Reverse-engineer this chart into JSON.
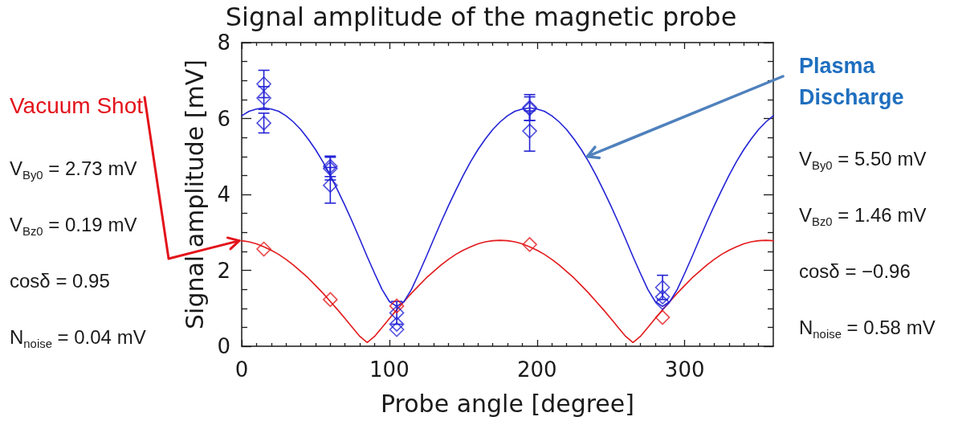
{
  "chart_data": {
    "type": "scatter",
    "title": "Signal amplitude of the magnetic probe",
    "xlabel": "Probe angle [degree]",
    "ylabel": "Signal amplitude [mV]",
    "xlim": [
      0,
      360
    ],
    "ylim": [
      0,
      8
    ],
    "xticks": [
      0,
      {
        "value": 10,
        "label": null
      },
      {
        "value": 20,
        "label": null
      },
      {
        "value": 30,
        "label": null
      },
      {
        "value": 40,
        "label": null
      },
      {
        "value": 50,
        "label": null
      },
      {
        "value": 60,
        "label": null
      },
      {
        "value": 70,
        "label": null
      },
      {
        "value": 80,
        "label": null
      },
      {
        "value": 90,
        "label": null
      },
      100,
      {
        "value": 110,
        "label": null
      },
      {
        "value": 120,
        "label": null
      },
      {
        "value": 130,
        "label": null
      },
      {
        "value": 140,
        "label": null
      },
      {
        "value": 150,
        "label": null
      },
      {
        "value": 160,
        "label": null
      },
      {
        "value": 170,
        "label": null
      },
      {
        "value": 180,
        "label": null
      },
      {
        "value": 190,
        "label": null
      },
      200,
      {
        "value": 210,
        "label": null
      },
      {
        "value": 220,
        "label": null
      },
      {
        "value": 230,
        "label": null
      },
      {
        "value": 240,
        "label": null
      },
      {
        "value": 250,
        "label": null
      },
      {
        "value": 260,
        "label": null
      },
      {
        "value": 270,
        "label": null
      },
      {
        "value": 280,
        "label": null
      },
      {
        "value": 290,
        "label": null
      },
      300,
      {
        "value": 310,
        "label": null
      },
      {
        "value": 320,
        "label": null
      },
      {
        "value": 330,
        "label": null
      },
      {
        "value": 340,
        "label": null
      },
      {
        "value": 350,
        "label": null
      }
    ],
    "yticks": [
      0,
      {
        "value": 0.5,
        "label": null
      },
      {
        "value": 1,
        "label": null
      },
      {
        "value": 1.5,
        "label": null
      },
      2,
      {
        "value": 2.5,
        "label": null
      },
      {
        "value": 3,
        "label": null
      },
      {
        "value": 3.5,
        "label": null
      },
      4,
      {
        "value": 4.5,
        "label": null
      },
      {
        "value": 5,
        "label": null
      },
      {
        "value": 5.5,
        "label": null
      },
      6,
      {
        "value": 6.5,
        "label": null
      },
      {
        "value": 7,
        "label": null
      },
      {
        "value": 7.5,
        "label": null
      },
      8
    ],
    "marker": "diamond",
    "annotations": [
      {
        "text": "Vacuum Shot",
        "x": 0,
        "y": 2.78
      },
      "V$_{By0}$ = 2.73 mV",
      "V$_{Bz0}$ = 0.19 mV",
      "cosδ = 0.95",
      "N$_{noise}$ = 0.04 mV",
      {
        "text": "Plasma Discharge",
        "x": 233,
        "y": 5.0
      },
      "V$_{By0}$ = 5.50 mV",
      "V$_{Bz0}$ = 1.46 mV",
      "cosδ = −0.96",
      "N$_{noise}$ = 0.58 mV"
    ],
    "series": [
      {
        "type": "line",
        "marker": "none",
        "color": "#e31a1c",
        "x": [
          0,
          5,
          10,
          15,
          20,
          25,
          30,
          35,
          40,
          45,
          50,
          55,
          60,
          65,
          70,
          75,
          80,
          85,
          90,
          95,
          100,
          105,
          110,
          115,
          120,
          125,
          130,
          135,
          140,
          145,
          150,
          155,
          160,
          165,
          170,
          175,
          180,
          185,
          190,
          195,
          200,
          205,
          210,
          215,
          220,
          225,
          230,
          235,
          240,
          245,
          250,
          255,
          260,
          265,
          270,
          275,
          280,
          285,
          290,
          295,
          300,
          305,
          310,
          315,
          320,
          325,
          330,
          335,
          340,
          345,
          350,
          355,
          360
        ],
        "values": [
          2.78,
          2.75,
          2.7,
          2.62,
          2.53,
          2.42,
          2.29,
          2.14,
          1.97,
          1.8,
          1.6,
          1.4,
          1.18,
          0.96,
          0.73,
          0.49,
          0.26,
          0.1,
          0.26,
          0.49,
          0.73,
          0.96,
          1.18,
          1.4,
          1.6,
          1.8,
          1.97,
          2.14,
          2.29,
          2.42,
          2.53,
          2.62,
          2.7,
          2.75,
          2.78,
          2.79,
          2.78,
          2.75,
          2.7,
          2.62,
          2.53,
          2.42,
          2.29,
          2.14,
          1.97,
          1.8,
          1.6,
          1.4,
          1.18,
          0.96,
          0.73,
          0.49,
          0.26,
          0.1,
          0.26,
          0.49,
          0.73,
          0.96,
          1.18,
          1.4,
          1.6,
          1.8,
          1.97,
          2.14,
          2.29,
          2.42,
          2.53,
          2.62,
          2.7,
          2.75,
          2.78,
          2.79,
          2.78
        ]
      },
      {
        "type": "line",
        "marker": "none",
        "color": "#2323d6",
        "x": [
          0,
          5,
          10,
          15,
          20,
          25,
          30,
          35,
          40,
          45,
          50,
          55,
          60,
          65,
          70,
          75,
          80,
          85,
          90,
          95,
          100,
          105,
          110,
          115,
          120,
          125,
          130,
          135,
          140,
          145,
          150,
          155,
          160,
          165,
          170,
          175,
          180,
          185,
          190,
          195,
          200,
          205,
          210,
          215,
          220,
          225,
          230,
          235,
          240,
          245,
          250,
          255,
          260,
          265,
          270,
          275,
          280,
          285,
          290,
          295,
          300,
          305,
          310,
          315,
          320,
          325,
          330,
          335,
          340,
          345,
          350,
          355,
          360
        ],
        "values": [
          6.07,
          6.19,
          6.25,
          6.28,
          6.25,
          6.19,
          6.07,
          5.91,
          5.71,
          5.46,
          5.18,
          4.86,
          4.5,
          4.11,
          3.7,
          3.27,
          2.82,
          2.36,
          1.92,
          1.5,
          1.18,
          1.05,
          1.18,
          1.5,
          1.92,
          2.36,
          2.82,
          3.27,
          3.7,
          4.11,
          4.5,
          4.86,
          5.18,
          5.46,
          5.71,
          5.91,
          6.07,
          6.19,
          6.25,
          6.28,
          6.25,
          6.19,
          6.07,
          5.91,
          5.71,
          5.46,
          5.18,
          4.86,
          4.5,
          4.11,
          3.7,
          3.27,
          2.82,
          2.36,
          1.92,
          1.5,
          1.18,
          1.05,
          1.18,
          1.5,
          1.92,
          2.36,
          2.82,
          3.27,
          3.7,
          4.11,
          4.5,
          4.86,
          5.18,
          5.46,
          5.71,
          5.91,
          6.07
        ]
      },
      {
        "color": "#e31a1c",
        "x": [
          15,
          60,
          105,
          195,
          285
        ],
        "values": [
          2.56,
          1.23,
          1.06,
          2.68,
          0.76
        ]
      },
      {
        "color": "#2323d6",
        "x": [
          15,
          15,
          15,
          60,
          60,
          60,
          105,
          105,
          105,
          195,
          195,
          195,
          285,
          285,
          285
        ],
        "values": [
          6.91,
          6.54,
          5.88,
          4.74,
          4.68,
          4.24,
          0.88,
          0.58,
          0.44,
          6.29,
          6.26,
          5.67,
          1.55,
          1.3,
          1.15
        ],
        "errors": [
          0.36,
          0.3,
          0.26,
          0.27,
          0.3,
          0.47,
          0.3,
          null,
          null,
          0.34,
          0.31,
          0.53,
          0.32,
          null,
          null
        ]
      }
    ]
  }
}
